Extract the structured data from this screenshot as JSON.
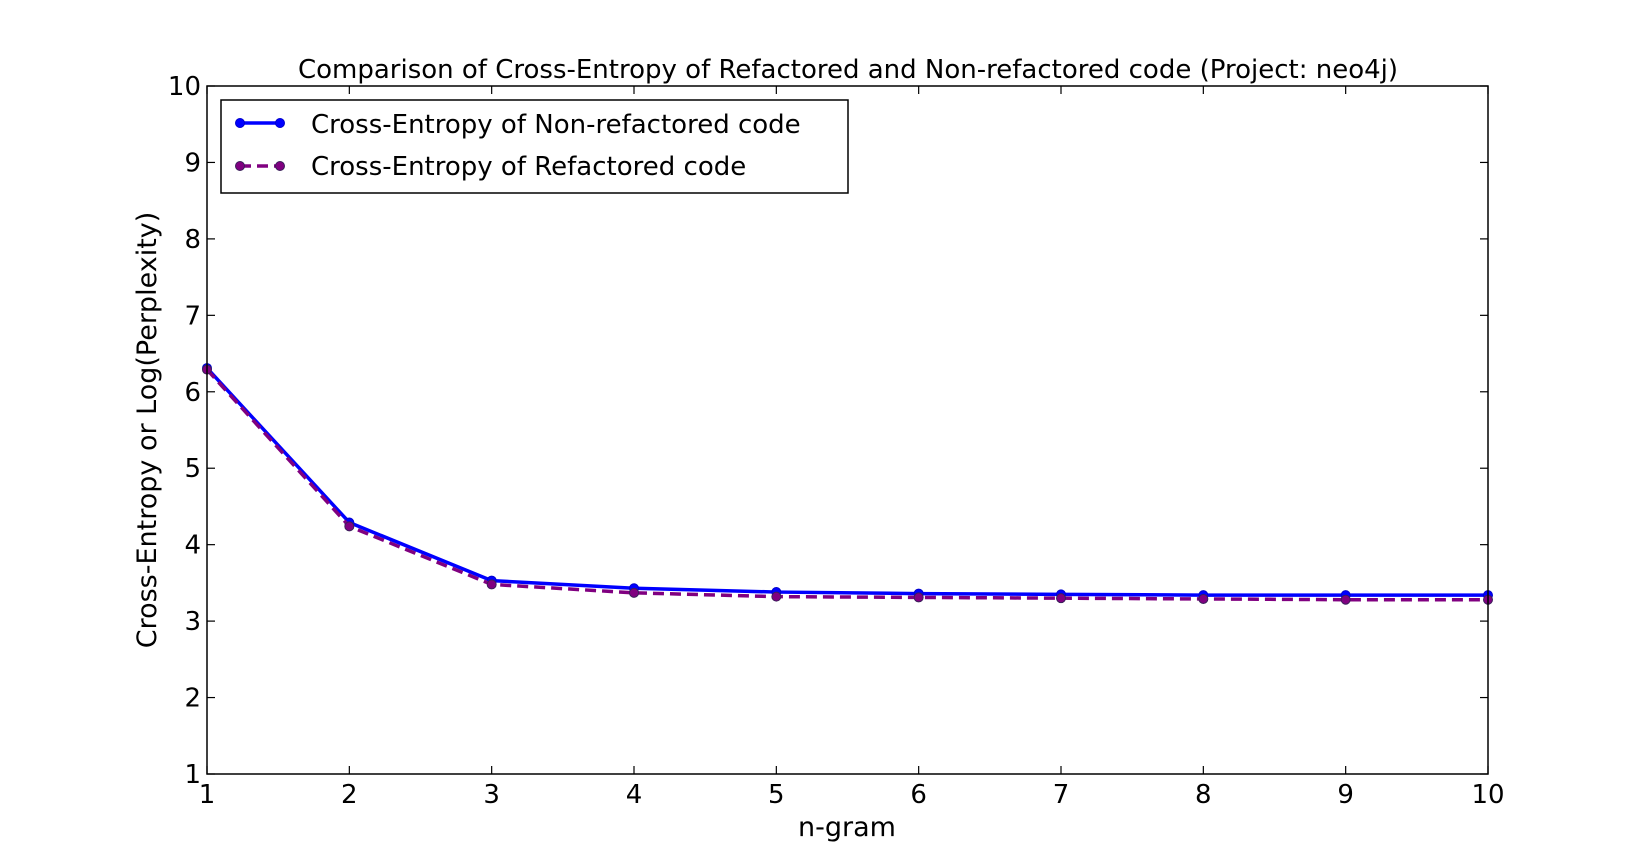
{
  "chart_data": {
    "type": "line",
    "title": "Comparison of Cross-Entropy of Refactored and Non-refactored code (Project: neo4j)",
    "xlabel": "n-gram",
    "ylabel": "Cross-Entropy or Log(Perplexity)",
    "x": [
      1,
      2,
      3,
      4,
      5,
      6,
      7,
      8,
      9,
      10
    ],
    "xlim": [
      1,
      10
    ],
    "ylim": [
      1,
      10
    ],
    "xticks": [
      "1",
      "2",
      "3",
      "4",
      "5",
      "6",
      "7",
      "8",
      "9",
      "10"
    ],
    "yticks": [
      "1",
      "2",
      "3",
      "4",
      "5",
      "6",
      "7",
      "8",
      "9",
      "10"
    ],
    "grid": false,
    "legend_position": "top-left",
    "series": [
      {
        "name": "Cross-Entropy of Non-refactored code",
        "values": [
          6.31,
          4.29,
          3.53,
          3.43,
          3.38,
          3.36,
          3.35,
          3.34,
          3.34,
          3.34
        ],
        "color": "#0000ff",
        "marker_color": "#0000ff",
        "line_style": "solid"
      },
      {
        "name": "Cross-Entropy of Refactored code",
        "values": [
          6.29,
          4.24,
          3.48,
          3.37,
          3.32,
          3.31,
          3.3,
          3.29,
          3.28,
          3.28
        ],
        "color": "#800080",
        "marker_color": "#800080",
        "line_style": "dashed"
      }
    ]
  }
}
